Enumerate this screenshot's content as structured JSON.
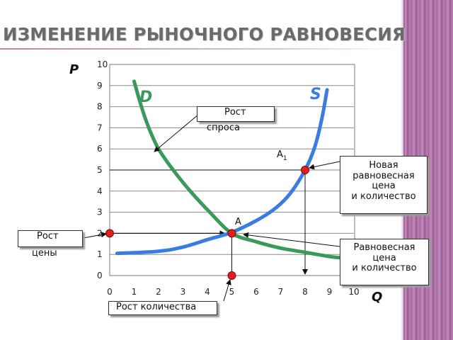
{
  "slide": {
    "title": "ИЗМЕНЕНИЕ РЫНОЧНОГО РАВНОВЕСИЯ",
    "accent_color": "#b070a8",
    "title_color": "#6a6a6a"
  },
  "chart_data": {
    "type": "line",
    "title": "",
    "xlabel": "Q",
    "ylabel": "P",
    "xlim": [
      0,
      10
    ],
    "ylim": [
      0,
      10
    ],
    "x_ticks": [
      "0",
      "1",
      "2",
      "3",
      "4",
      "5",
      "6",
      "7",
      "8",
      "9",
      "10"
    ],
    "y_ticks": [
      "0",
      "1",
      "2",
      "3",
      "4",
      "5",
      "6",
      "7",
      "8",
      "9",
      "10"
    ],
    "grid": true,
    "series": [
      {
        "name": "D",
        "color": "#3a9a5c",
        "points": [
          [
            1,
            9.2
          ],
          [
            1.3,
            8
          ],
          [
            1.6,
            7
          ],
          [
            2,
            6
          ],
          [
            2.6,
            5
          ],
          [
            3.3,
            4
          ],
          [
            4.1,
            3
          ],
          [
            5,
            2
          ],
          [
            6,
            1.6
          ],
          [
            7,
            1.3
          ],
          [
            8,
            1.1
          ],
          [
            9,
            0.9
          ],
          [
            9.4,
            0.85
          ]
        ]
      },
      {
        "name": "S",
        "color": "#3a7de0",
        "points": [
          [
            0.3,
            1.05
          ],
          [
            2,
            1.15
          ],
          [
            3,
            1.35
          ],
          [
            4,
            1.7
          ],
          [
            5,
            2.05
          ],
          [
            6,
            2.6
          ],
          [
            6.8,
            3.2
          ],
          [
            7.4,
            3.9
          ],
          [
            8,
            5.0
          ],
          [
            8.4,
            6.1
          ],
          [
            8.7,
            7.5
          ],
          [
            8.9,
            8.8
          ]
        ]
      }
    ],
    "points": [
      {
        "label": "A",
        "x": 5,
        "y": 2
      },
      {
        "label": "A1",
        "x": 8,
        "y": 5
      },
      {
        "label": "",
        "x": 0,
        "y": 2
      },
      {
        "label": "",
        "x": 5,
        "y": 0
      }
    ],
    "point_color": "#e02020"
  },
  "callouts": {
    "demand_growth": {
      "line1": "Рост",
      "line2": "спроса"
    },
    "new_equilibrium": {
      "line1": "Новая",
      "line2": "равновесная",
      "line3": "цена",
      "line4": "и количество"
    },
    "equilibrium": {
      "line1": "Равновесная",
      "line2": "цена",
      "line3": "и количество"
    },
    "price_growth": {
      "line1": "Рост",
      "line2": "цены"
    },
    "quantity_growth": {
      "line1": "Рост количества"
    }
  }
}
